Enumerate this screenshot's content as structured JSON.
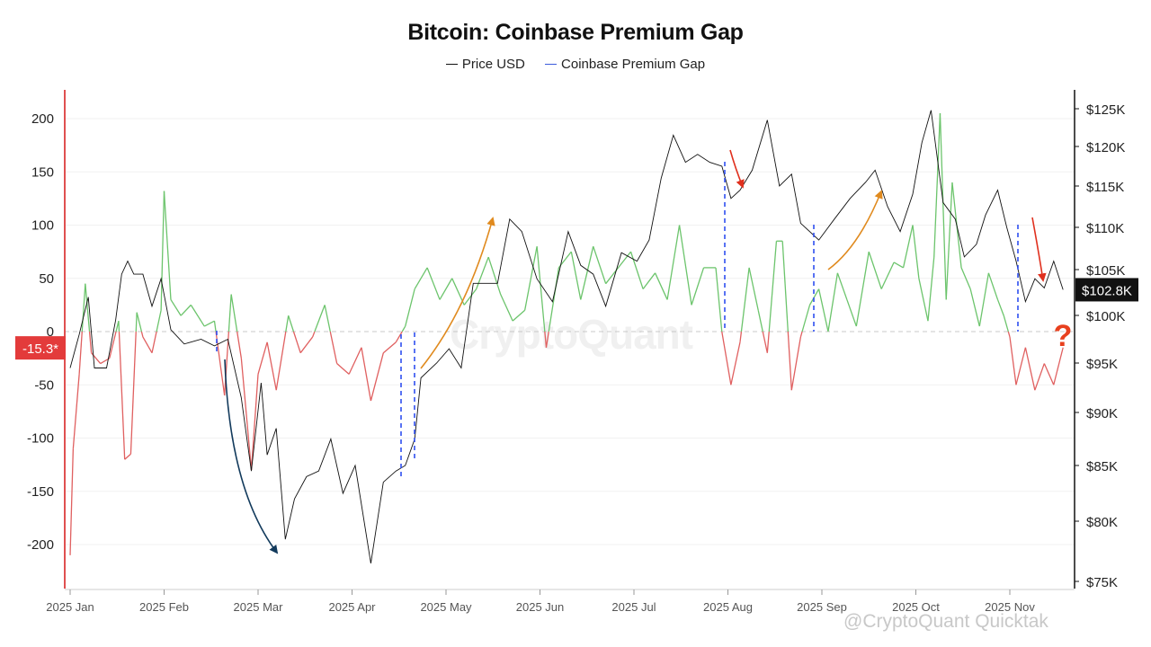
{
  "chart_data": {
    "type": "line",
    "title": "Bitcoin: Coinbase Premium Gap",
    "legend_position": "top-center",
    "grid": true,
    "series": [
      {
        "name": "Price USD",
        "color": "#111111",
        "axis": "right"
      },
      {
        "name": "Coinbase Premium Gap",
        "color": "#3b5bdb",
        "axis": "left",
        "positive_color": "#6cc46c",
        "negative_color": "#e06060"
      }
    ],
    "left_axis": {
      "ticks": [
        200,
        150,
        100,
        50,
        0,
        -50,
        -100,
        -150,
        -200
      ],
      "ylim": [
        -225,
        228
      ]
    },
    "right_axis": {
      "ticks": [
        "$125K",
        "$120K",
        "$115K",
        "$110K",
        "$105K",
        "$100K",
        "$95K",
        "$90K",
        "$85K",
        "$80K",
        "$75K"
      ],
      "tick_values": [
        125,
        120,
        115,
        110,
        105,
        100,
        95,
        90,
        85,
        80,
        75
      ],
      "unit": "K USD"
    },
    "x_ticks": [
      "2025 Jan",
      "2025 Feb",
      "2025 Mar",
      "2025 Apr",
      "2025 May",
      "2025 Jun",
      "2025 Jul",
      "2025 Aug",
      "2025 Sep",
      "2025 Oct",
      "2025 Nov"
    ],
    "x_tick_dates": [
      "2025-01-01",
      "2025-02-01",
      "2025-03-01",
      "2025-04-01",
      "2025-05-01",
      "2025-06-01",
      "2025-07-01",
      "2025-08-01",
      "2025-09-01",
      "2025-10-01",
      "2025-11-01"
    ],
    "price_points": [
      [
        "2025-01-01",
        94.5
      ],
      [
        "2025-01-04",
        98.0
      ],
      [
        "2025-01-07",
        102.0
      ],
      [
        "2025-01-09",
        94.5
      ],
      [
        "2025-01-13",
        94.5
      ],
      [
        "2025-01-16",
        99.5
      ],
      [
        "2025-01-18",
        104.5
      ],
      [
        "2025-01-20",
        106.0
      ],
      [
        "2025-01-22",
        104.5
      ],
      [
        "2025-01-25",
        104.5
      ],
      [
        "2025-01-28",
        101.0
      ],
      [
        "2025-01-31",
        104.0
      ],
      [
        "2025-02-03",
        98.5
      ],
      [
        "2025-02-07",
        97.0
      ],
      [
        "2025-02-12",
        97.5
      ],
      [
        "2025-02-16",
        96.8
      ],
      [
        "2025-02-20",
        97.5
      ],
      [
        "2025-02-24",
        91.5
      ],
      [
        "2025-02-27",
        84.5
      ],
      [
        "2025-03-02",
        93.0
      ],
      [
        "2025-03-04",
        86.0
      ],
      [
        "2025-03-07",
        88.5
      ],
      [
        "2025-03-10",
        78.5
      ],
      [
        "2025-03-13",
        82.0
      ],
      [
        "2025-03-17",
        84.0
      ],
      [
        "2025-03-21",
        84.5
      ],
      [
        "2025-03-25",
        87.5
      ],
      [
        "2025-03-29",
        82.5
      ],
      [
        "2025-04-02",
        85.0
      ],
      [
        "2025-04-07",
        76.5
      ],
      [
        "2025-04-11",
        83.5
      ],
      [
        "2025-04-15",
        84.5
      ],
      [
        "2025-04-18",
        85.0
      ],
      [
        "2025-04-21",
        87.5
      ],
      [
        "2025-04-23",
        93.5
      ],
      [
        "2025-04-28",
        95.0
      ],
      [
        "2025-05-02",
        96.5
      ],
      [
        "2025-05-06",
        94.5
      ],
      [
        "2025-05-10",
        103.5
      ],
      [
        "2025-05-14",
        103.5
      ],
      [
        "2025-05-18",
        103.5
      ],
      [
        "2025-05-22",
        111.0
      ],
      [
        "2025-05-26",
        109.5
      ],
      [
        "2025-05-31",
        104.0
      ],
      [
        "2025-06-05",
        101.5
      ],
      [
        "2025-06-10",
        109.5
      ],
      [
        "2025-06-14",
        105.5
      ],
      [
        "2025-06-18",
        104.5
      ],
      [
        "2025-06-22",
        101.0
      ],
      [
        "2025-06-27",
        107.0
      ],
      [
        "2025-07-02",
        106.0
      ],
      [
        "2025-07-06",
        108.5
      ],
      [
        "2025-07-10",
        116.0
      ],
      [
        "2025-07-14",
        121.5
      ],
      [
        "2025-07-18",
        118.0
      ],
      [
        "2025-07-22",
        119.0
      ],
      [
        "2025-07-26",
        118.0
      ],
      [
        "2025-07-30",
        117.5
      ],
      [
        "2025-08-02",
        113.5
      ],
      [
        "2025-08-05",
        114.5
      ],
      [
        "2025-08-09",
        117.0
      ],
      [
        "2025-08-14",
        123.5
      ],
      [
        "2025-08-18",
        115.0
      ],
      [
        "2025-08-22",
        116.5
      ],
      [
        "2025-08-25",
        110.5
      ],
      [
        "2025-08-31",
        108.5
      ],
      [
        "2025-09-05",
        111.0
      ],
      [
        "2025-09-10",
        113.5
      ],
      [
        "2025-09-15",
        115.5
      ],
      [
        "2025-09-18",
        117.0
      ],
      [
        "2025-09-22",
        112.5
      ],
      [
        "2025-09-26",
        109.5
      ],
      [
        "2025-09-30",
        114.0
      ],
      [
        "2025-10-03",
        120.5
      ],
      [
        "2025-10-06",
        124.8
      ],
      [
        "2025-10-10",
        113.0
      ],
      [
        "2025-10-14",
        111.0
      ],
      [
        "2025-10-17",
        106.5
      ],
      [
        "2025-10-21",
        108.0
      ],
      [
        "2025-10-24",
        111.5
      ],
      [
        "2025-10-28",
        114.5
      ],
      [
        "2025-10-31",
        110.0
      ],
      [
        "2025-11-03",
        106.0
      ],
      [
        "2025-11-06",
        101.5
      ],
      [
        "2025-11-09",
        104.0
      ],
      [
        "2025-11-12",
        103.0
      ],
      [
        "2025-11-15",
        106.0
      ],
      [
        "2025-11-18",
        102.8
      ]
    ],
    "premium_gap_points": [
      [
        "2025-01-01",
        -210
      ],
      [
        "2025-01-02",
        -110
      ],
      [
        "2025-01-04",
        -40
      ],
      [
        "2025-01-06",
        45
      ],
      [
        "2025-01-08",
        -20
      ],
      [
        "2025-01-11",
        -30
      ],
      [
        "2025-01-14",
        -25
      ],
      [
        "2025-01-17",
        10
      ],
      [
        "2025-01-19",
        -120
      ],
      [
        "2025-01-21",
        -115
      ],
      [
        "2025-01-23",
        18
      ],
      [
        "2025-01-25",
        -5
      ],
      [
        "2025-01-28",
        -20
      ],
      [
        "2025-01-31",
        20
      ],
      [
        "2025-02-01",
        132
      ],
      [
        "2025-02-03",
        30
      ],
      [
        "2025-02-06",
        15
      ],
      [
        "2025-02-09",
        25
      ],
      [
        "2025-02-13",
        5
      ],
      [
        "2025-02-16",
        10
      ],
      [
        "2025-02-19",
        -60
      ],
      [
        "2025-02-21",
        35
      ],
      [
        "2025-02-24",
        -25
      ],
      [
        "2025-02-27",
        -130
      ],
      [
        "2025-03-01",
        -40
      ],
      [
        "2025-03-04",
        -10
      ],
      [
        "2025-03-07",
        -55
      ],
      [
        "2025-03-11",
        15
      ],
      [
        "2025-03-15",
        -20
      ],
      [
        "2025-03-19",
        -5
      ],
      [
        "2025-03-23",
        25
      ],
      [
        "2025-03-27",
        -30
      ],
      [
        "2025-03-31",
        -40
      ],
      [
        "2025-04-04",
        -15
      ],
      [
        "2025-04-07",
        -65
      ],
      [
        "2025-04-11",
        -20
      ],
      [
        "2025-04-15",
        -10
      ],
      [
        "2025-04-18",
        5
      ],
      [
        "2025-04-21",
        40
      ],
      [
        "2025-04-25",
        60
      ],
      [
        "2025-04-29",
        30
      ],
      [
        "2025-05-03",
        50
      ],
      [
        "2025-05-07",
        25
      ],
      [
        "2025-05-11",
        40
      ],
      [
        "2025-05-15",
        70
      ],
      [
        "2025-05-19",
        35
      ],
      [
        "2025-05-23",
        10
      ],
      [
        "2025-05-27",
        20
      ],
      [
        "2025-05-31",
        80
      ],
      [
        "2025-06-03",
        -15
      ],
      [
        "2025-06-07",
        60
      ],
      [
        "2025-06-11",
        75
      ],
      [
        "2025-06-14",
        30
      ],
      [
        "2025-06-18",
        80
      ],
      [
        "2025-06-22",
        45
      ],
      [
        "2025-06-26",
        60
      ],
      [
        "2025-06-30",
        75
      ],
      [
        "2025-07-04",
        40
      ],
      [
        "2025-07-08",
        55
      ],
      [
        "2025-07-12",
        30
      ],
      [
        "2025-07-16",
        100
      ],
      [
        "2025-07-20",
        25
      ],
      [
        "2025-07-24",
        60
      ],
      [
        "2025-07-28",
        60
      ],
      [
        "2025-07-30",
        0
      ],
      [
        "2025-08-02",
        -50
      ],
      [
        "2025-08-05",
        -10
      ],
      [
        "2025-08-08",
        60
      ],
      [
        "2025-08-11",
        20
      ],
      [
        "2025-08-14",
        -20
      ],
      [
        "2025-08-17",
        85
      ],
      [
        "2025-08-19",
        85
      ],
      [
        "2025-08-22",
        -55
      ],
      [
        "2025-08-25",
        -5
      ],
      [
        "2025-08-28",
        25
      ],
      [
        "2025-08-31",
        40
      ],
      [
        "2025-09-03",
        0
      ],
      [
        "2025-09-06",
        55
      ],
      [
        "2025-09-09",
        30
      ],
      [
        "2025-09-12",
        5
      ],
      [
        "2025-09-16",
        75
      ],
      [
        "2025-09-20",
        40
      ],
      [
        "2025-09-24",
        65
      ],
      [
        "2025-09-27",
        60
      ],
      [
        "2025-09-30",
        100
      ],
      [
        "2025-10-02",
        50
      ],
      [
        "2025-10-05",
        10
      ],
      [
        "2025-10-07",
        70
      ],
      [
        "2025-10-09",
        205
      ],
      [
        "2025-10-11",
        30
      ],
      [
        "2025-10-13",
        140
      ],
      [
        "2025-10-16",
        60
      ],
      [
        "2025-10-19",
        40
      ],
      [
        "2025-10-22",
        5
      ],
      [
        "2025-10-25",
        55
      ],
      [
        "2025-10-28",
        30
      ],
      [
        "2025-10-30",
        15
      ],
      [
        "2025-11-01",
        -5
      ],
      [
        "2025-11-03",
        -50
      ],
      [
        "2025-11-06",
        -15
      ],
      [
        "2025-11-09",
        -55
      ],
      [
        "2025-11-12",
        -30
      ],
      [
        "2025-11-15",
        -50
      ],
      [
        "2025-11-18",
        -15
      ]
    ],
    "current_values": {
      "premium_gap": "-15.3*",
      "price": "$102.8K"
    },
    "annotations": {
      "question_mark": "?",
      "watermark": "CryptoQuant",
      "footer": "@CryptoQuant Quicktak"
    }
  }
}
